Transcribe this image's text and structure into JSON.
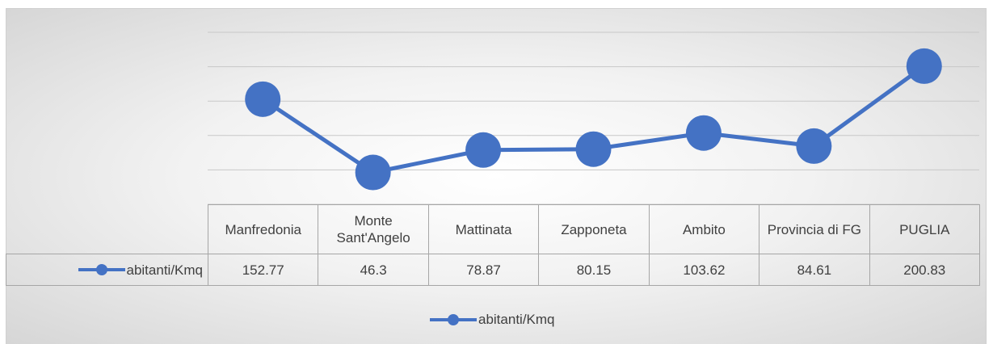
{
  "chart_data": {
    "type": "line",
    "categories": [
      "Manfredonia",
      "Monte Sant'Angelo",
      "Mattinata",
      "Zapponeta",
      "Ambito",
      "Provincia di FG",
      "PUGLIA"
    ],
    "series": [
      {
        "name": "abitanti/Kmq",
        "color": "#4472c4",
        "values": [
          152.77,
          46.3,
          78.87,
          80.15,
          103.62,
          84.61,
          200.83
        ]
      }
    ],
    "ylim": [
      0,
      250
    ],
    "yticks": [
      0,
      50,
      100,
      150,
      200,
      250
    ],
    "grid": true,
    "legend": "bottom",
    "data_table": true
  }
}
